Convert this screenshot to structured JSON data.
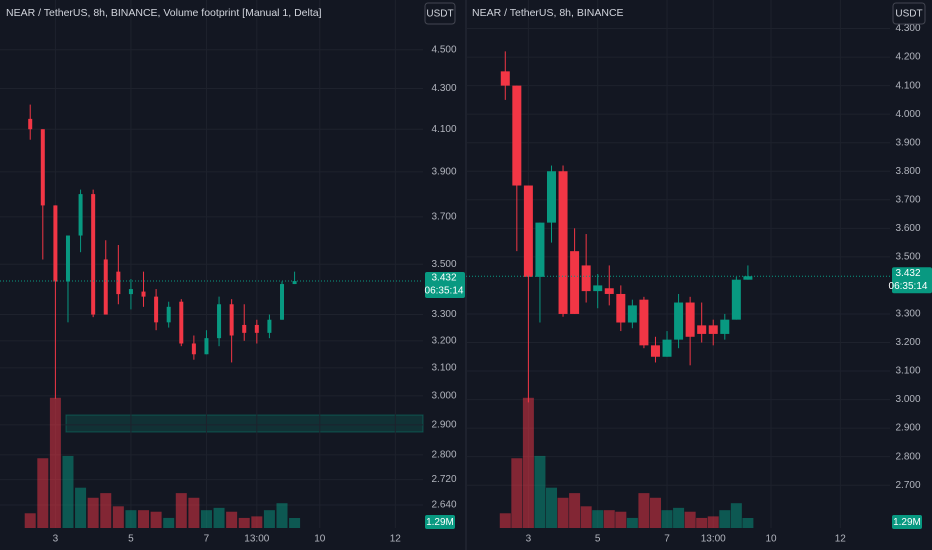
{
  "chart_data": [
    {
      "type": "candlestick",
      "title": "NEAR / TetherUS, 8h, BINANCE, Volume footprint [Manual 1, Delta]",
      "currency": "USDT",
      "log_scale": true,
      "grid": true,
      "up_color": "#089981",
      "down_color": "#f23645",
      "ylim": [
        2.57,
        4.77
      ],
      "yticks": [
        {
          "value": 4.5,
          "label": "4.500"
        },
        {
          "value": 4.3,
          "label": "4.300"
        },
        {
          "value": 4.1,
          "label": "4.100"
        },
        {
          "value": 3.9,
          "label": "3.900"
        },
        {
          "value": 3.7,
          "label": "3.700"
        },
        {
          "value": 3.5,
          "label": "3.500"
        },
        {
          "value": 3.3,
          "label": "3.300"
        },
        {
          "value": 3.2,
          "label": "3.200"
        },
        {
          "value": 3.1,
          "label": "3.100"
        },
        {
          "value": 3.0,
          "label": "3.000"
        },
        {
          "value": 2.9,
          "label": "2.900"
        },
        {
          "value": 2.8,
          "label": "2.800"
        },
        {
          "value": 2.72,
          "label": "2.720"
        },
        {
          "value": 2.64,
          "label": "2.640"
        }
      ],
      "xlim": [
        -2.4,
        31.2
      ],
      "xticks": [
        {
          "value": 2,
          "label": "3"
        },
        {
          "value": 8,
          "label": "5"
        },
        {
          "value": 14,
          "label": "7"
        },
        {
          "value": 18,
          "label": "13:00"
        },
        {
          "value": 23,
          "label": "10"
        },
        {
          "value": 29,
          "label": "12"
        }
      ],
      "open": [
        4.15,
        4.1,
        3.75,
        3.43,
        3.62,
        3.8,
        3.52,
        3.47,
        3.38,
        3.39,
        3.37,
        3.27,
        3.35,
        3.19,
        3.15,
        3.21,
        3.34,
        3.26,
        3.26,
        3.23,
        3.28,
        3.42
      ],
      "high": [
        4.22,
        4.1,
        3.75,
        3.62,
        3.82,
        3.82,
        3.6,
        3.58,
        3.44,
        3.47,
        3.4,
        3.35,
        3.36,
        3.22,
        3.24,
        3.37,
        3.36,
        3.34,
        3.28,
        3.3,
        3.43,
        3.47
      ],
      "low": [
        4.05,
        3.52,
        2.99,
        3.27,
        3.55,
        3.29,
        3.3,
        3.34,
        3.32,
        3.33,
        3.24,
        3.25,
        3.18,
        3.13,
        3.15,
        3.18,
        3.12,
        3.2,
        3.19,
        3.21,
        3.28,
        3.42
      ],
      "close": [
        4.1,
        3.75,
        3.43,
        3.62,
        3.8,
        3.3,
        3.3,
        3.38,
        3.4,
        3.37,
        3.27,
        3.33,
        3.19,
        3.15,
        3.21,
        3.34,
        3.22,
        3.23,
        3.23,
        3.28,
        3.42,
        3.432
      ],
      "volume": [
        1.9,
        9.0,
        16.8,
        9.3,
        5.2,
        3.9,
        4.5,
        2.8,
        2.3,
        2.3,
        2.1,
        1.3,
        4.5,
        3.9,
        2.3,
        2.6,
        2.1,
        1.3,
        1.5,
        2.3,
        3.2,
        1.29
      ],
      "vlim": [
        0,
        20
      ],
      "last_price": 3.432,
      "countdown": "06:35:14",
      "volume_label": "1.29M"
    },
    {
      "type": "candlestick",
      "title": "NEAR / TetherUS, 8h, BINANCE",
      "currency": "USDT",
      "log_scale": false,
      "grid": true,
      "up_color": "#089981",
      "down_color": "#f23645",
      "ylim": [
        2.55,
        4.4
      ],
      "yticks": [
        {
          "value": 4.3,
          "label": "4.300"
        },
        {
          "value": 4.2,
          "label": "4.200"
        },
        {
          "value": 4.1,
          "label": "4.100"
        },
        {
          "value": 4.0,
          "label": "4.000"
        },
        {
          "value": 3.9,
          "label": "3.900"
        },
        {
          "value": 3.8,
          "label": "3.800"
        },
        {
          "value": 3.7,
          "label": "3.700"
        },
        {
          "value": 3.6,
          "label": "3.600"
        },
        {
          "value": 3.5,
          "label": "3.500"
        },
        {
          "value": 3.3,
          "label": "3.300"
        },
        {
          "value": 3.2,
          "label": "3.200"
        },
        {
          "value": 3.1,
          "label": "3.100"
        },
        {
          "value": 3.0,
          "label": "3.000"
        },
        {
          "value": 2.9,
          "label": "2.900"
        },
        {
          "value": 2.8,
          "label": "2.800"
        },
        {
          "value": 2.7,
          "label": "2.700"
        }
      ],
      "xlim": [
        -3.4,
        33.3
      ],
      "xticks": [
        {
          "value": 2,
          "label": "3"
        },
        {
          "value": 8,
          "label": "5"
        },
        {
          "value": 14,
          "label": "7"
        },
        {
          "value": 18,
          "label": "13:00"
        },
        {
          "value": 23,
          "label": "10"
        },
        {
          "value": 29,
          "label": "12"
        }
      ],
      "open": [
        4.15,
        4.1,
        3.75,
        3.43,
        3.62,
        3.8,
        3.52,
        3.47,
        3.38,
        3.39,
        3.37,
        3.27,
        3.35,
        3.19,
        3.15,
        3.21,
        3.34,
        3.26,
        3.26,
        3.23,
        3.28,
        3.42
      ],
      "high": [
        4.22,
        4.1,
        3.75,
        3.62,
        3.82,
        3.82,
        3.6,
        3.58,
        3.44,
        3.47,
        3.4,
        3.35,
        3.36,
        3.22,
        3.24,
        3.37,
        3.36,
        3.34,
        3.28,
        3.3,
        3.43,
        3.47
      ],
      "low": [
        4.05,
        3.52,
        2.99,
        3.27,
        3.55,
        3.29,
        3.3,
        3.34,
        3.32,
        3.33,
        3.24,
        3.25,
        3.18,
        3.13,
        3.15,
        3.18,
        3.12,
        3.2,
        3.19,
        3.21,
        3.28,
        3.42
      ],
      "close": [
        4.1,
        3.75,
        3.43,
        3.62,
        3.8,
        3.3,
        3.3,
        3.38,
        3.4,
        3.37,
        3.27,
        3.33,
        3.19,
        3.15,
        3.21,
        3.34,
        3.22,
        3.23,
        3.23,
        3.28,
        3.42,
        3.432
      ],
      "volume": [
        1.9,
        9.0,
        16.8,
        9.3,
        5.2,
        3.9,
        4.5,
        2.8,
        2.3,
        2.3,
        2.1,
        1.3,
        4.5,
        3.9,
        2.3,
        2.6,
        2.1,
        1.3,
        1.5,
        2.3,
        3.2,
        1.29
      ],
      "vlim": [
        0,
        20
      ],
      "last_price": 3.432,
      "countdown": "06:35:14",
      "volume_label": "1.29M"
    }
  ]
}
